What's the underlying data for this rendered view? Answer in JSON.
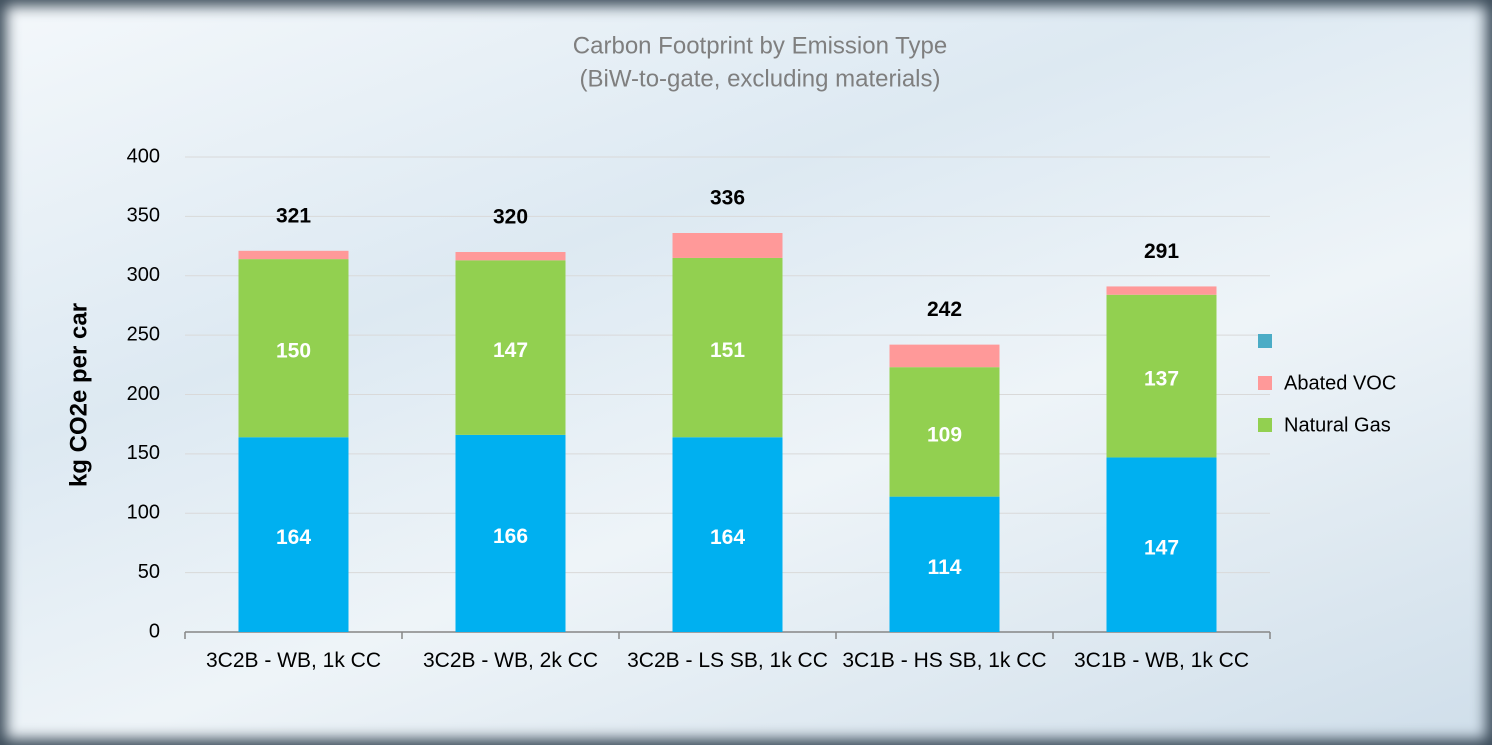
{
  "chart_data": {
    "type": "stacked_bar",
    "title": "Carbon Footprint by Emission Type",
    "subtitle": "(BiW-to-gate, excluding materials)",
    "y_label": "kg CO2e per car",
    "categories": [
      "3C2B - WB, 1k CC",
      "3C2B - WB, 2k CC",
      "3C2B - LS SB, 1k CC",
      "3C1B - HS SB, 1k CC",
      "3C1B - WB, 1k CC"
    ],
    "series": [
      {
        "color": "#00b0f0",
        "legend_color": "#4bacc6",
        "values": [
          164,
          166,
          164,
          114,
          147
        ],
        "labels": true
      },
      {
        "name": "Natural Gas",
        "color": "#92d050",
        "values": [
          150,
          147,
          151,
          109,
          137
        ],
        "labels": true
      },
      {
        "name": "Abated VOC",
        "color": "#ff9999",
        "values": [
          7,
          7,
          21,
          19,
          7
        ],
        "labels": false
      }
    ],
    "totals": [
      321,
      320,
      336,
      242,
      291
    ],
    "legend_order": [
      0,
      2,
      1
    ],
    "legend": "right",
    "ylim": [
      0,
      400
    ],
    "yticks": [
      0,
      50,
      100,
      150,
      200,
      250,
      300,
      350,
      400
    ],
    "grid": true
  }
}
